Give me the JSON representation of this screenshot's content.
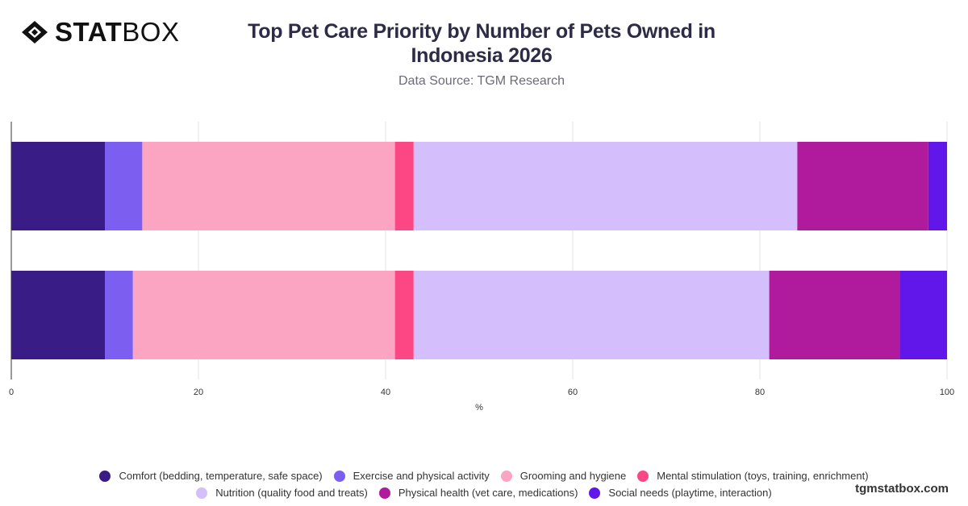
{
  "brand": {
    "logo_bold": "STAT",
    "logo_light": "BOX",
    "website": "tgmstatbox.com"
  },
  "header": {
    "title": "Top Pet Care Priority by Number of Pets Owned in Indonesia 2026",
    "subtitle": "Data Source: TGM Research"
  },
  "chart_data": {
    "type": "bar",
    "orientation": "horizontal",
    "stacked": true,
    "categories": [
      "",
      ""
    ],
    "xlabel": "%",
    "ylabel": "",
    "xlim": [
      0,
      100
    ],
    "xticks": [
      0,
      20,
      40,
      60,
      80,
      100
    ],
    "grid": true,
    "legend_position": "bottom",
    "series": [
      {
        "name": "Comfort (bedding, temperature, safe space)",
        "color": "#3a1c86",
        "values": [
          10,
          10
        ]
      },
      {
        "name": "Exercise and physical activity",
        "color": "#7c5ff0",
        "values": [
          4,
          3
        ]
      },
      {
        "name": "Grooming and hygiene",
        "color": "#fca5c3",
        "values": [
          27,
          28
        ]
      },
      {
        "name": "Mental stimulation (toys, training, enrichment)",
        "color": "#fc4785",
        "values": [
          2,
          2
        ]
      },
      {
        "name": "Nutrition (quality food and treats)",
        "color": "#d4befb",
        "values": [
          41,
          38
        ]
      },
      {
        "name": "Physical health (vet care, medications)",
        "color": "#b01a9d",
        "values": [
          14,
          14
        ]
      },
      {
        "name": "Social needs (playtime, interaction)",
        "color": "#6117e9",
        "values": [
          2,
          5
        ]
      }
    ]
  }
}
